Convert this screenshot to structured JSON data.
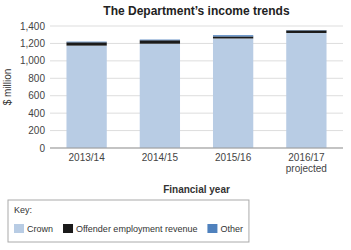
{
  "chart_data": {
    "type": "bar",
    "stacked": true,
    "title": "The Department’s income trends",
    "x_label": "Financial year",
    "y_label": "$ million",
    "categories": [
      "2013/14",
      "2014/15",
      "2015/16",
      "2016/17\nprojected"
    ],
    "series": [
      {
        "name": "Crown",
        "color": "#b8cce4",
        "values": [
          1174.817,
          1196.843,
          1256.73,
          1319.896
        ]
      },
      {
        "name": "Offender employment revenue",
        "color": "#1a1a1a",
        "values": [
          37.943,
          39.204,
          23.038,
          29.498
        ]
      },
      {
        "name": "Other",
        "color": "#4f81bd",
        "values": [
          7.976,
          8.15,
          14.578,
          3.39
        ]
      }
    ],
    "ylim": [
      0,
      1400
    ],
    "yticks": [
      0,
      200,
      400,
      600,
      800,
      {
        "value": 1000,
        "label": "1,000"
      },
      {
        "value": 1200,
        "label": "1,200"
      },
      {
        "value": 1400,
        "label": "1,400"
      }
    ],
    "grid": true,
    "legend": "bottom",
    "legend_title": "Key:"
  }
}
